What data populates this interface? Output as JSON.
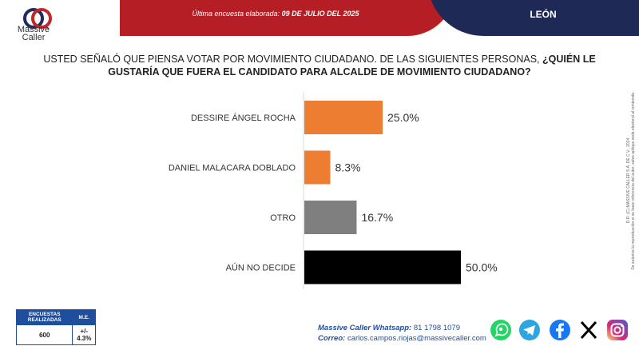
{
  "header": {
    "date_label": "Última encuesta elaborada:",
    "date_value": "09 DE JULIO DEL 2025",
    "region": "LEÓN"
  },
  "brand": {
    "line1": "Massive",
    "line2": "Caller"
  },
  "question": {
    "plain": "USTED SEÑALÓ QUE PIENSA VOTAR POR MOVIMIENTO CIUDADANO. DE LAS SIGUIENTES PERSONAS,",
    "bold": "¿QUIÉN LE GUSTARÍA QUE FUERA EL CANDIDATO PARA ALCALDE DE MOVIMIENTO CIUDADANO?"
  },
  "chart_data": {
    "type": "bar",
    "orientation": "horizontal",
    "title": "",
    "categories": [
      "DESSIRE ÁNGEL ROCHA",
      "DANIEL MALACARA DOBLADO",
      "OTRO",
      "AÚN NO DECIDE"
    ],
    "values": [
      25.0,
      8.3,
      16.7,
      50.0
    ],
    "labels": [
      "25.0%",
      "8.3%",
      "16.7%",
      "50.0%"
    ],
    "colors": [
      "#ed7d31",
      "#ed7d31",
      "#7f7f7f",
      "#000000"
    ],
    "xlim": [
      0,
      50
    ],
    "grid": false
  },
  "side_note": {
    "line1": "D.R. (C) MASSIVE CALLER S.A. DE C.V., 2024",
    "line2": "Se autoriza la reproducción si se hace referencia del autor, salvo aplique veda electoral al contenido."
  },
  "stats": {
    "headers": [
      "ENCUESTAS REALIZADAS",
      "M.E."
    ],
    "values": [
      "600",
      "+/- 4.3%"
    ]
  },
  "contact": {
    "whatsapp_label": "Massive Caller Whatsapp:",
    "whatsapp_value": "81 1798 1079",
    "email_label": "Correo:",
    "email_value": "carlos.campos.riojas@massivecaller.com"
  },
  "social_icons": [
    "whatsapp-icon",
    "telegram-icon",
    "facebook-icon",
    "x-icon",
    "instagram-icon"
  ]
}
